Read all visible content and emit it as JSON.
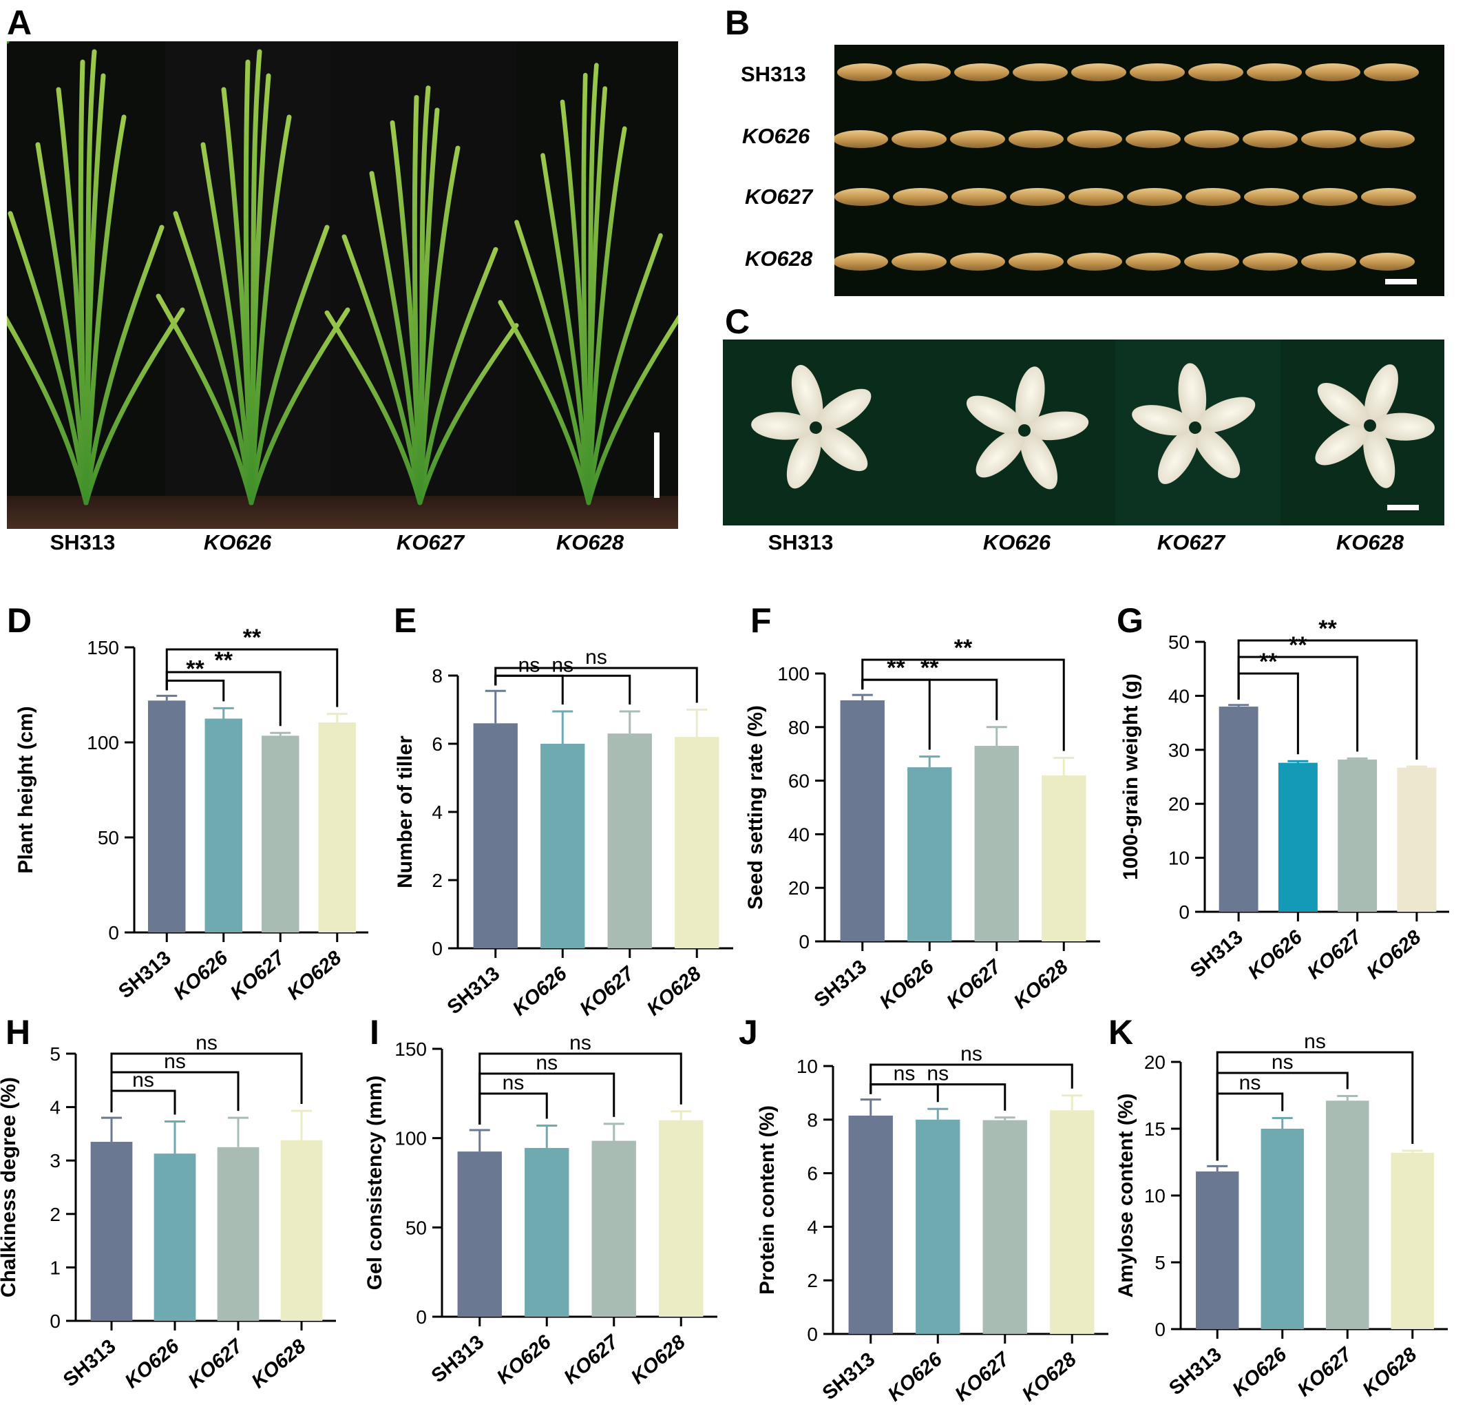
{
  "panels": {
    "A": {
      "letter": "A",
      "captions": [
        "SH313",
        "KO626",
        "KO627",
        "KO628"
      ]
    },
    "B": {
      "letter": "B",
      "rows": [
        "SH313",
        "KO626",
        "KO627",
        "KO628"
      ]
    },
    "C": {
      "letter": "C",
      "captions": [
        "SH313",
        "KO626",
        "KO627",
        "KO628"
      ]
    }
  },
  "colors": {
    "SH313": "#6b7891",
    "KO626": "#6faab0",
    "KO627": "#a8bcb4",
    "KO628": "#ececc4",
    "KO626_G": "#1499b6",
    "KO628_G": "#ece7ce",
    "plant_bg": "#0b0e0b",
    "grain_bg": "#061006",
    "rice_bg": "#0a2d1b"
  },
  "chart_data": [
    {
      "id": "D",
      "letter": "D",
      "type": "bar",
      "categories": [
        "SH313",
        "KO626",
        "KO627",
        "KO628"
      ],
      "values": [
        122,
        112.5,
        103.5,
        110.5
      ],
      "errors": [
        2.5,
        5.5,
        1.5,
        4.5
      ],
      "ylabel": "Plant height (cm)",
      "ylim": [
        0,
        150
      ],
      "yticks": [
        0,
        50,
        100,
        150
      ],
      "sig": [
        {
          "from": 0,
          "to": 1,
          "level": 0,
          "label": "**"
        },
        {
          "from": 0,
          "to": 2,
          "level": 1,
          "label": "**"
        },
        {
          "from": 0,
          "to": 3,
          "level": 2,
          "label": "**"
        }
      ]
    },
    {
      "id": "E",
      "letter": "E",
      "type": "bar",
      "categories": [
        "SH313",
        "KO626",
        "KO627",
        "KO628"
      ],
      "values": [
        6.6,
        6.0,
        6.3,
        6.2
      ],
      "errors": [
        0.95,
        0.95,
        0.65,
        0.8
      ],
      "ylabel": "Number of tiller",
      "ylim": [
        0,
        8
      ],
      "yticks": [
        0,
        2,
        4,
        6,
        8
      ],
      "sig": [
        {
          "from": 0,
          "to": 1,
          "level": 0,
          "label": "ns"
        },
        {
          "from": 0,
          "to": 2,
          "level": 1,
          "label": "ns"
        },
        {
          "from": 0,
          "to": 3,
          "level": 2,
          "label": "ns"
        }
      ]
    },
    {
      "id": "F",
      "letter": "F",
      "type": "bar",
      "categories": [
        "SH313",
        "KO626",
        "KO627",
        "KO628"
      ],
      "values": [
        90,
        65,
        73,
        62
      ],
      "errors": [
        2,
        4,
        7,
        6.5
      ],
      "ylabel": "Seed setting rate (%)",
      "ylim": [
        0,
        100
      ],
      "yticks": [
        0,
        20,
        40,
        60,
        80,
        100
      ],
      "sig": [
        {
          "from": 0,
          "to": 1,
          "level": 0,
          "label": "**"
        },
        {
          "from": 0,
          "to": 2,
          "level": 1,
          "label": "**"
        },
        {
          "from": 0,
          "to": 3,
          "level": 2,
          "label": "**"
        }
      ]
    },
    {
      "id": "G",
      "letter": "G",
      "type": "bar",
      "categories": [
        "SH313",
        "KO626",
        "KO627",
        "KO628"
      ],
      "values": [
        38,
        27.6,
        28.2,
        26.7
      ],
      "errors": [
        0.3,
        0.3,
        0.2,
        0.2
      ],
      "ylabel": "1000-grain weight (g)",
      "ylim": [
        0,
        50
      ],
      "yticks": [
        0,
        10,
        20,
        30,
        40,
        50
      ],
      "colorKeys": [
        "SH313",
        "KO626_G",
        "KO627",
        "KO628_G"
      ],
      "sig": [
        {
          "from": 0,
          "to": 1,
          "level": 0,
          "label": "**"
        },
        {
          "from": 0,
          "to": 2,
          "level": 1,
          "label": "**"
        },
        {
          "from": 0,
          "to": 3,
          "level": 2,
          "label": "**"
        }
      ]
    },
    {
      "id": "H",
      "letter": "H",
      "type": "bar",
      "categories": [
        "SH313",
        "KO626",
        "KO627",
        "KO628"
      ],
      "values": [
        3.35,
        3.13,
        3.25,
        3.38
      ],
      "errors": [
        0.45,
        0.6,
        0.55,
        0.55
      ],
      "ylabel": "Chalkiness degree (%)",
      "ylim": [
        0,
        5
      ],
      "yticks": [
        0,
        1,
        2,
        3,
        4,
        5
      ],
      "sig": [
        {
          "from": 0,
          "to": 1,
          "level": 0,
          "label": "ns"
        },
        {
          "from": 0,
          "to": 2,
          "level": 1,
          "label": "ns"
        },
        {
          "from": 0,
          "to": 3,
          "level": 2,
          "label": "ns"
        }
      ]
    },
    {
      "id": "I",
      "letter": "I",
      "type": "bar",
      "categories": [
        "SH313",
        "KO626",
        "KO627",
        "KO628"
      ],
      "values": [
        92.5,
        94.5,
        98.5,
        110
      ],
      "errors": [
        12,
        12.5,
        9.5,
        5
      ],
      "ylabel": "Gel consistency (mm)",
      "ylim": [
        0,
        150
      ],
      "yticks": [
        0,
        50,
        100,
        150
      ],
      "sig": [
        {
          "from": 0,
          "to": 1,
          "level": 0,
          "label": "ns"
        },
        {
          "from": 0,
          "to": 2,
          "level": 1,
          "label": "ns"
        },
        {
          "from": 0,
          "to": 3,
          "level": 2,
          "label": "ns"
        }
      ]
    },
    {
      "id": "J",
      "letter": "J",
      "type": "bar",
      "categories": [
        "SH313",
        "KO626",
        "KO627",
        "KO628"
      ],
      "values": [
        8.15,
        8.0,
        7.98,
        8.35
      ],
      "errors": [
        0.6,
        0.4,
        0.1,
        0.55
      ],
      "ylabel": "Protein content (%)",
      "ylim": [
        0,
        10
      ],
      "yticks": [
        0,
        2,
        4,
        6,
        8,
        10
      ],
      "sig": [
        {
          "from": 0,
          "to": 1,
          "level": 0,
          "label": "ns"
        },
        {
          "from": 0,
          "to": 2,
          "level": 1,
          "label": "ns"
        },
        {
          "from": 0,
          "to": 3,
          "level": 2,
          "label": "ns"
        }
      ]
    },
    {
      "id": "K",
      "letter": "K",
      "type": "bar",
      "categories": [
        "SH313",
        "KO626",
        "KO627",
        "KO628"
      ],
      "values": [
        11.8,
        15.0,
        17.1,
        13.2
      ],
      "errors": [
        0.4,
        0.8,
        0.35,
        0.15
      ],
      "ylabel": "Amylose content (%)",
      "ylim": [
        0,
        20
      ],
      "yticks": [
        0,
        5,
        10,
        15,
        20
      ],
      "sig": [
        {
          "from": 0,
          "to": 1,
          "level": 0,
          "label": "ns"
        },
        {
          "from": 0,
          "to": 2,
          "level": 1,
          "label": "ns"
        },
        {
          "from": 0,
          "to": 3,
          "level": 2,
          "label": "ns"
        }
      ]
    }
  ]
}
